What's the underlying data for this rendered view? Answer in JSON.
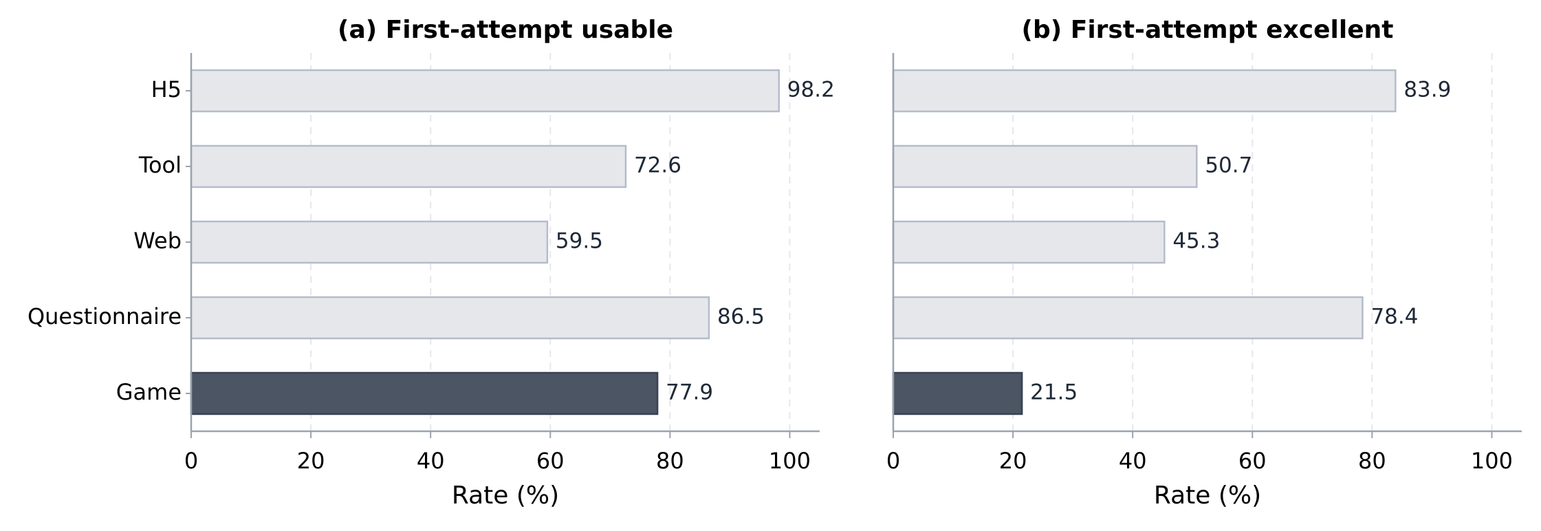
{
  "chart_data": [
    {
      "type": "bar",
      "orientation": "horizontal",
      "title": "(a) First-attempt usable",
      "xlabel": "Rate (%)",
      "ylabel": "",
      "categories": [
        "H5",
        "Tool",
        "Web",
        "Questionnaire",
        "Game"
      ],
      "values": [
        98.2,
        72.6,
        59.5,
        86.5,
        77.9
      ],
      "value_labels": [
        "98.2",
        "72.6",
        "59.5",
        "86.5",
        "77.9"
      ],
      "highlight_category": "Game",
      "xlim": [
        0,
        105
      ],
      "xticks": [
        0,
        20,
        40,
        60,
        80,
        100
      ],
      "xtick_labels": [
        "0",
        "20",
        "40",
        "60",
        "80",
        "100"
      ],
      "grid": "x dashed",
      "legend": "none"
    },
    {
      "type": "bar",
      "orientation": "horizontal",
      "title": "(b) First-attempt excellent",
      "xlabel": "Rate (%)",
      "ylabel": "",
      "categories": [
        "H5",
        "Tool",
        "Web",
        "Questionnaire",
        "Game"
      ],
      "values": [
        83.9,
        50.7,
        45.3,
        78.4,
        21.5
      ],
      "value_labels": [
        "83.9",
        "50.7",
        "45.3",
        "78.4",
        "21.5"
      ],
      "highlight_category": "Game",
      "xlim": [
        0,
        105
      ],
      "xticks": [
        0,
        20,
        40,
        60,
        80,
        100
      ],
      "xtick_labels": [
        "0",
        "20",
        "40",
        "60",
        "80",
        "100"
      ],
      "grid": "x dashed",
      "legend": "none"
    }
  ],
  "colors": {
    "bar_fill": "#e5e7eb",
    "bar_edge": "#b4bccb",
    "highlight_fill": "#4b5563",
    "highlight_edge": "#374151",
    "axis": "#9aa3b0",
    "grid": "#e5e7eb",
    "value_text": "#1f2937"
  }
}
